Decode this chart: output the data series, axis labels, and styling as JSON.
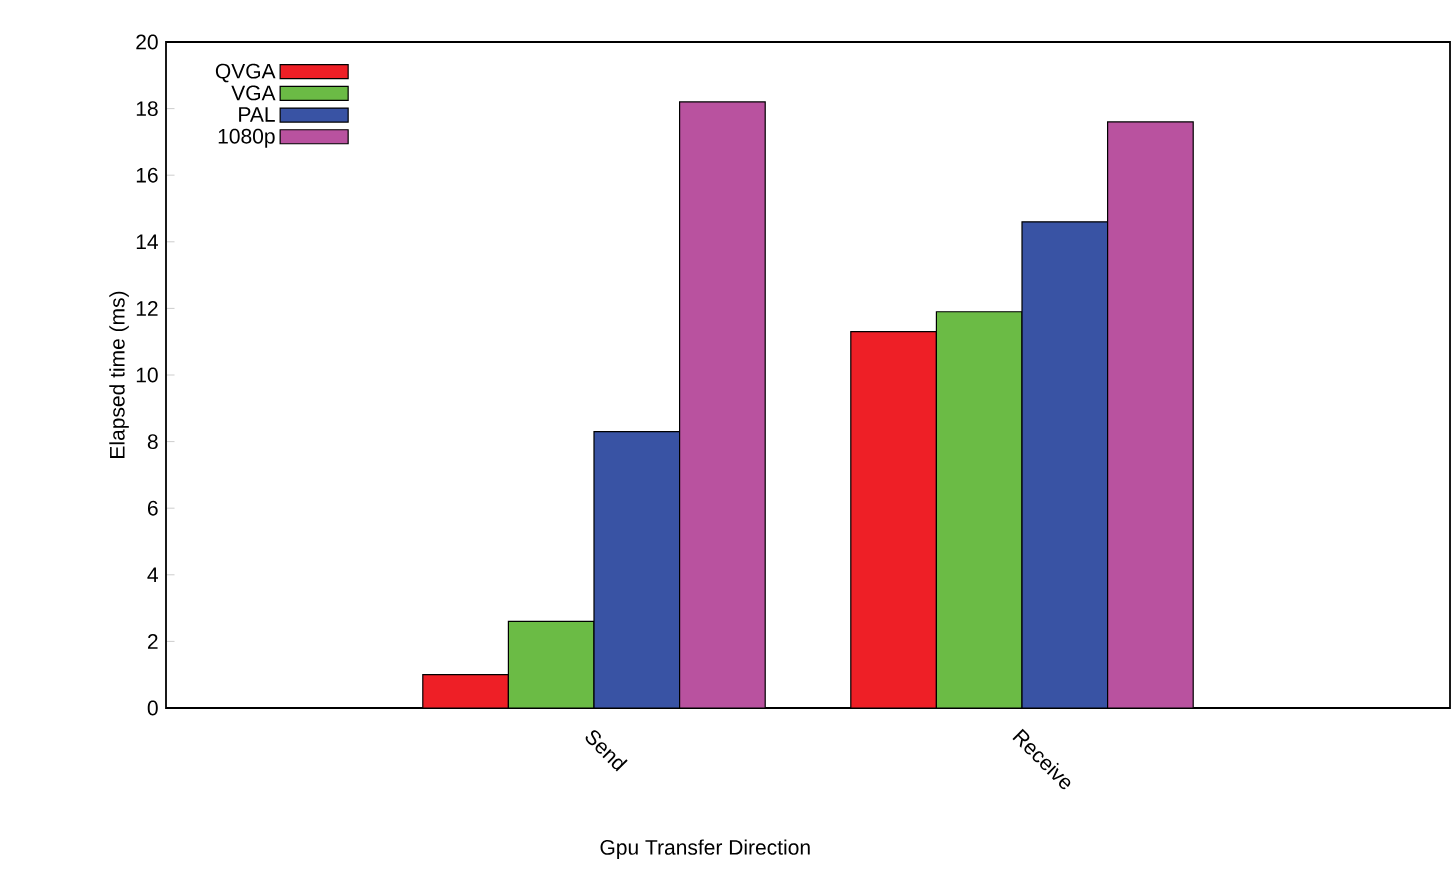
{
  "chart_data": {
    "type": "bar",
    "xlabel": "Gpu Transfer Direction",
    "ylabel": "Elapsed time (ms)",
    "categories": [
      "Send",
      "Receive"
    ],
    "series": [
      {
        "name": "QVGA",
        "color": "#ee1f26",
        "values": [
          1.0,
          11.3
        ]
      },
      {
        "name": "VGA",
        "color": "#6bbb45",
        "values": [
          2.6,
          11.9
        ]
      },
      {
        "name": "PAL",
        "color": "#3953a4",
        "values": [
          8.3,
          14.6
        ]
      },
      {
        "name": "1080p",
        "color": "#b9529f",
        "values": [
          18.2,
          17.6
        ]
      }
    ],
    "ylim": [
      0,
      20
    ],
    "yticks": [
      0,
      2,
      4,
      6,
      8,
      10,
      12,
      14,
      16,
      18,
      20
    ],
    "legend": "top left"
  }
}
